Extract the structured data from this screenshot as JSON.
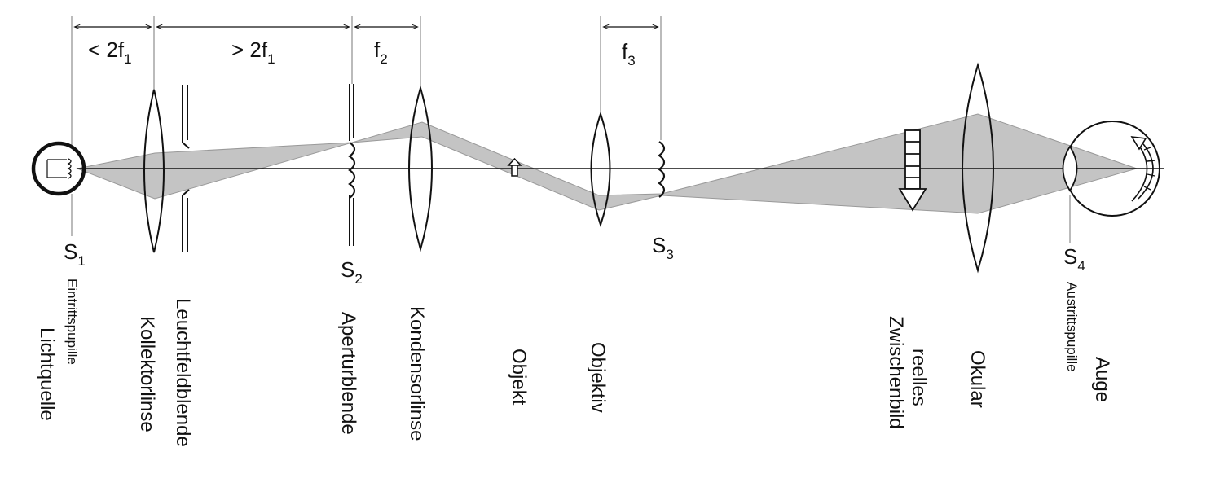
{
  "dimensions": {
    "d1": {
      "main": "< 2f",
      "sub": "1"
    },
    "d2": {
      "main": "> 2f",
      "sub": "1"
    },
    "d3": {
      "main": "f",
      "sub": "2"
    },
    "d4": {
      "main": "f",
      "sub": "3"
    }
  },
  "points": {
    "s1": {
      "main": "S",
      "sub": "1"
    },
    "s2": {
      "main": "S",
      "sub": "2"
    },
    "s3": {
      "main": "S",
      "sub": "3"
    },
    "s4": {
      "main": "S",
      "sub": "4"
    }
  },
  "labels": {
    "eintrittspupille": "Eintrittspupille",
    "lichtquelle": "Lichtquelle",
    "kollektorlinse": "Kollektorlinse",
    "leuchtfeldblende": "Leuchtfeldblende",
    "aperturblende": "Aperturblende",
    "kondensorlinse": "Kondensorlinse",
    "objekt": "Objekt",
    "objektiv": "Objektiv",
    "reelles": "reelles",
    "zwischenbild": "Zwischenbild",
    "okular": "Okular",
    "austrittspupille": "Austrittspupille",
    "auge": "Auge"
  },
  "colors": {
    "beam": "#c4c4c4",
    "line": "#111111"
  }
}
